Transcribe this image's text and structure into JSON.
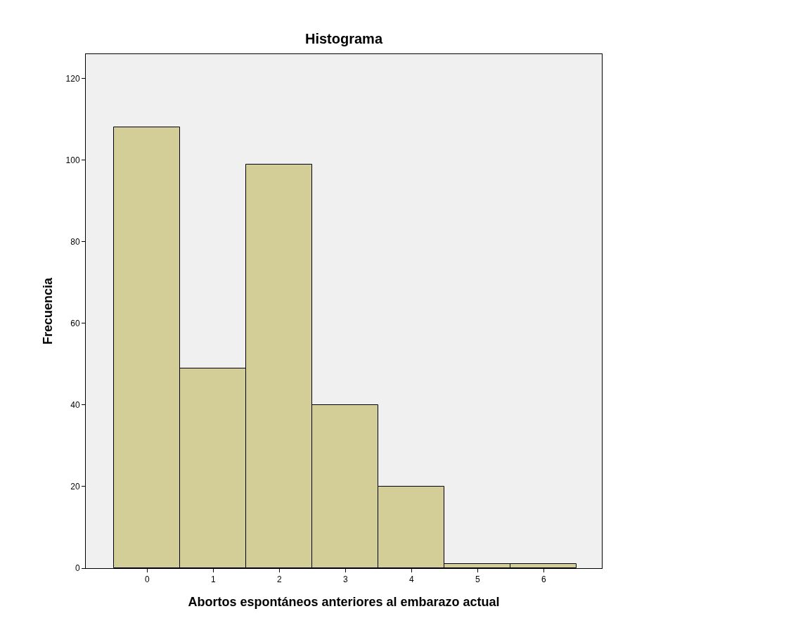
{
  "chart_data": {
    "type": "histogram",
    "title": "Histograma",
    "xlabel": "Abortos espontáneos anteriores al embarazo actual",
    "ylabel": "Frecuencia",
    "bins": [
      -0.5,
      0.5,
      1.5,
      2.5,
      3.5,
      4.5,
      5.5,
      6.5
    ],
    "values": [
      108,
      49,
      99,
      40,
      20,
      1,
      1
    ],
    "color": "#d3ce98",
    "xlim": [
      -0.93,
      6.88
    ],
    "xticks": [
      0,
      1,
      2,
      3,
      4,
      5,
      6
    ],
    "ylim": [
      0,
      126
    ],
    "yticks": [
      0,
      20,
      40,
      60,
      80,
      100,
      120
    ],
    "grid": false
  }
}
